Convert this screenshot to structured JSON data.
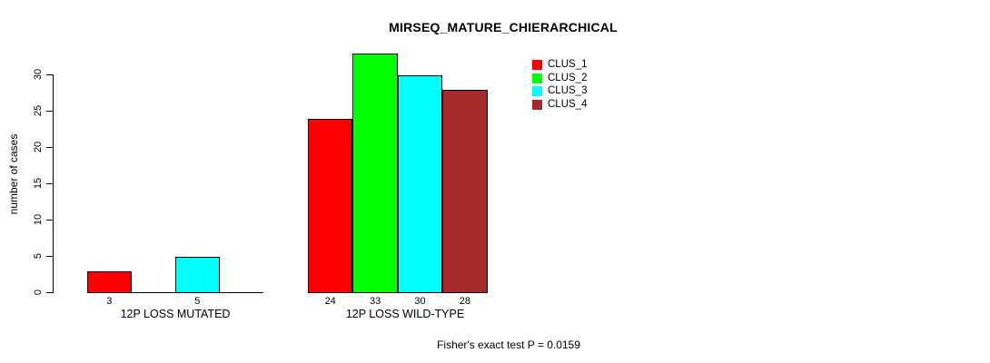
{
  "chart_data": {
    "type": "bar",
    "title": "MIRSEQ_MATURE_CHIERARCHICAL",
    "xlabel": "",
    "ylabel": "number of cases",
    "ylim": [
      0,
      33
    ],
    "yticks": [
      0,
      5,
      10,
      15,
      20,
      25,
      30
    ],
    "grid": false,
    "legend_position": "top-right",
    "categories": [
      "12P LOSS MUTATED",
      "12P LOSS WILD-TYPE"
    ],
    "series": [
      {
        "name": "CLUS_1",
        "color": "#ff0000",
        "values": [
          3,
          24
        ]
      },
      {
        "name": "CLUS_2",
        "color": "#00ff00",
        "values": [
          0,
          33
        ]
      },
      {
        "name": "CLUS_3",
        "color": "#00ffff",
        "values": [
          5,
          30
        ]
      },
      {
        "name": "CLUS_4",
        "color": "#a52a2a",
        "values": [
          0,
          28
        ]
      }
    ],
    "bar_value_labels": [
      [
        "3",
        "",
        "5",
        ""
      ],
      [
        "24",
        "33",
        "30",
        "28"
      ]
    ],
    "annotation": "Fisher's exact test P = 0.0159",
    "colors": {
      "background": "#ffffff",
      "axis": "#000000",
      "text": "#000000"
    }
  }
}
